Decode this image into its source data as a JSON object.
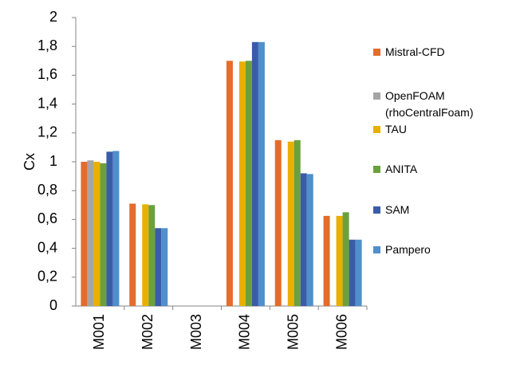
{
  "chart_data": {
    "type": "bar",
    "y_label": "Cx",
    "categories": [
      "M001",
      "M002",
      "M003",
      "M004",
      "M005",
      "M006"
    ],
    "series": [
      {
        "name": "Mistral-CFD",
        "color": "#e46c2c",
        "values": [
          1.0,
          0.71,
          null,
          1.7,
          1.15,
          0.625
        ]
      },
      {
        "name": "OpenFOAM (rhoCentralFoam)",
        "color": "#a5a5a5",
        "values": [
          1.01,
          null,
          null,
          null,
          null,
          null
        ]
      },
      {
        "name": "TAU",
        "color": "#e8b000",
        "values": [
          1.0,
          0.705,
          null,
          1.695,
          1.14,
          0.625
        ]
      },
      {
        "name": "ANITA",
        "color": "#6aa13d",
        "values": [
          0.99,
          0.7,
          null,
          1.7,
          1.15,
          0.65
        ]
      },
      {
        "name": "SAM",
        "color": "#3a5ca8",
        "values": [
          1.07,
          0.54,
          null,
          1.83,
          0.92,
          0.46
        ]
      },
      {
        "name": "Pampero",
        "color": "#4f8fcc",
        "values": [
          1.075,
          0.54,
          null,
          1.83,
          0.915,
          0.46
        ]
      }
    ],
    "ylim": [
      0,
      2
    ],
    "yticks": [
      0,
      {
        "value": 0.2,
        "label": "0,2"
      },
      {
        "value": 0.4,
        "label": "0,4"
      },
      {
        "value": 0.6,
        "label": "0,6"
      },
      {
        "value": 0.8,
        "label": "0,8"
      },
      1,
      {
        "value": 1.2,
        "label": "1,2"
      },
      {
        "value": 1.4,
        "label": "1,4"
      },
      {
        "value": 1.6,
        "label": "1,6"
      },
      {
        "value": 1.8,
        "label": "1,8"
      },
      2
    ],
    "grid": false,
    "legend": "right"
  }
}
